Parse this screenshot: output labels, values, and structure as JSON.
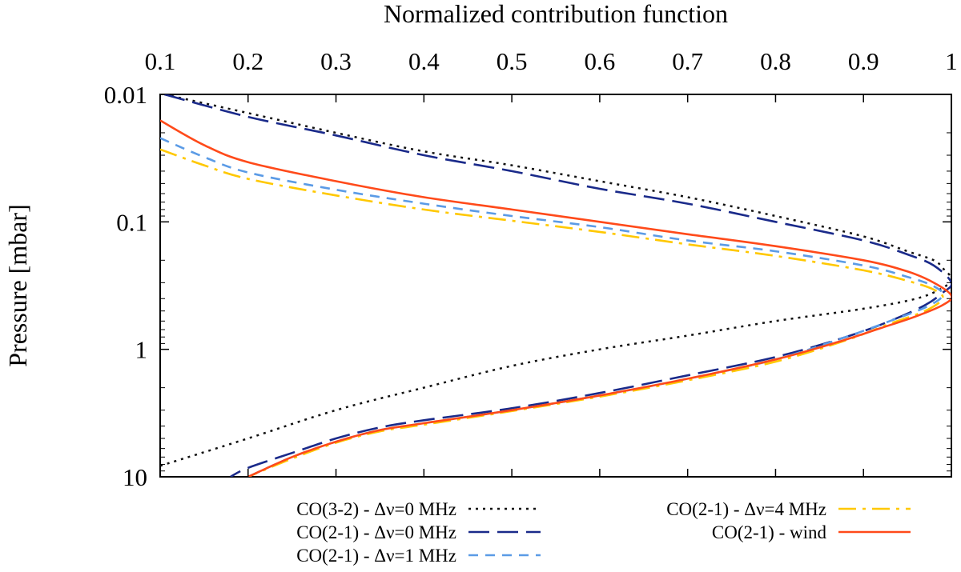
{
  "chart_data": {
    "type": "line",
    "title": "",
    "xlabel": "Normalized contribution function",
    "ylabel": "Pressure [mbar]",
    "xaxis_position": "top",
    "xlim": [
      0.1,
      1.0
    ],
    "ylim": [
      0.01,
      10
    ],
    "yscale": "log",
    "yinverted": true,
    "grid": false,
    "legend_position": "bottom-outside",
    "x_ticks": [
      {
        "value": 0.1,
        "label": "0.1"
      },
      {
        "value": 0.2,
        "label": "0.2"
      },
      {
        "value": 0.3,
        "label": "0.3"
      },
      {
        "value": 0.4,
        "label": "0.4"
      },
      {
        "value": 0.5,
        "label": "0.5"
      },
      {
        "value": 0.6,
        "label": "0.6"
      },
      {
        "value": 0.7,
        "label": "0.7"
      },
      {
        "value": 0.8,
        "label": "0.8"
      },
      {
        "value": 0.9,
        "label": "0.9"
      },
      {
        "value": 1.0,
        "label": "1"
      }
    ],
    "y_ticks": [
      {
        "value": 0.01,
        "label": "0.01"
      },
      {
        "value": 0.1,
        "label": "0.1"
      },
      {
        "value": 1,
        "label": "1"
      },
      {
        "value": 10,
        "label": "10"
      }
    ],
    "series": [
      {
        "name": "CO(3-2) - Δν=0 MHz",
        "color": "#111111",
        "dash": "dotted",
        "points": [
          [
            0.105,
            0.01
          ],
          [
            0.2,
            0.014
          ],
          [
            0.3,
            0.02
          ],
          [
            0.4,
            0.028
          ],
          [
            0.5,
            0.036
          ],
          [
            0.6,
            0.048
          ],
          [
            0.7,
            0.064
          ],
          [
            0.8,
            0.09
          ],
          [
            0.9,
            0.13
          ],
          [
            0.95,
            0.17
          ],
          [
            0.98,
            0.2
          ],
          [
            0.99,
            0.23
          ],
          [
            1.0,
            0.28
          ],
          [
            0.99,
            0.33
          ],
          [
            0.96,
            0.4
          ],
          [
            0.9,
            0.48
          ],
          [
            0.8,
            0.6
          ],
          [
            0.7,
            0.78
          ],
          [
            0.6,
            1.0
          ],
          [
            0.5,
            1.35
          ],
          [
            0.4,
            2.0
          ],
          [
            0.3,
            3.0
          ],
          [
            0.2,
            5.0
          ],
          [
            0.1,
            8.2
          ]
        ]
      },
      {
        "name": "CO(2-1) - Δν=0 MHz",
        "color": "#1a2a8a",
        "dash": "long-dash",
        "points": [
          [
            0.105,
            0.01
          ],
          [
            0.2,
            0.015
          ],
          [
            0.3,
            0.021
          ],
          [
            0.4,
            0.03
          ],
          [
            0.5,
            0.04
          ],
          [
            0.6,
            0.055
          ],
          [
            0.7,
            0.072
          ],
          [
            0.8,
            0.1
          ],
          [
            0.9,
            0.14
          ],
          [
            0.95,
            0.18
          ],
          [
            0.98,
            0.22
          ],
          [
            1.0,
            0.3
          ],
          [
            0.99,
            0.36
          ],
          [
            0.97,
            0.45
          ],
          [
            0.93,
            0.6
          ],
          [
            0.88,
            0.8
          ],
          [
            0.8,
            1.15
          ],
          [
            0.7,
            1.6
          ],
          [
            0.6,
            2.2
          ],
          [
            0.5,
            2.9
          ],
          [
            0.4,
            3.6
          ],
          [
            0.35,
            4.1
          ],
          [
            0.3,
            5.0
          ],
          [
            0.25,
            6.5
          ],
          [
            0.2,
            8.5
          ],
          [
            0.18,
            10
          ]
        ]
      },
      {
        "name": "CO(2-1) - Δν=1 MHz",
        "color": "#5b9be6",
        "dash": "dash",
        "points": [
          [
            0.1,
            0.022
          ],
          [
            0.15,
            0.031
          ],
          [
            0.2,
            0.041
          ],
          [
            0.3,
            0.056
          ],
          [
            0.4,
            0.072
          ],
          [
            0.5,
            0.09
          ],
          [
            0.6,
            0.11
          ],
          [
            0.7,
            0.14
          ],
          [
            0.8,
            0.17
          ],
          [
            0.9,
            0.22
          ],
          [
            0.95,
            0.27
          ],
          [
            0.98,
            0.32
          ],
          [
            0.99,
            0.38
          ],
          [
            0.97,
            0.47
          ],
          [
            0.93,
            0.6
          ],
          [
            0.88,
            0.8
          ],
          [
            0.8,
            1.2
          ],
          [
            0.7,
            1.7
          ],
          [
            0.6,
            2.3
          ],
          [
            0.5,
            3.0
          ],
          [
            0.4,
            3.8
          ],
          [
            0.35,
            4.3
          ],
          [
            0.3,
            5.3
          ],
          [
            0.25,
            7.0
          ],
          [
            0.2,
            10
          ]
        ]
      },
      {
        "name": "CO(2-1) - Δν=4 MHz",
        "color": "#ffc800",
        "dash": "dash-dot",
        "points": [
          [
            0.1,
            0.027
          ],
          [
            0.15,
            0.036
          ],
          [
            0.2,
            0.046
          ],
          [
            0.3,
            0.062
          ],
          [
            0.4,
            0.08
          ],
          [
            0.5,
            0.098
          ],
          [
            0.6,
            0.12
          ],
          [
            0.7,
            0.15
          ],
          [
            0.8,
            0.185
          ],
          [
            0.9,
            0.24
          ],
          [
            0.95,
            0.29
          ],
          [
            0.98,
            0.34
          ],
          [
            0.99,
            0.4
          ],
          [
            0.97,
            0.5
          ],
          [
            0.93,
            0.63
          ],
          [
            0.88,
            0.85
          ],
          [
            0.8,
            1.25
          ],
          [
            0.7,
            1.75
          ],
          [
            0.6,
            2.35
          ],
          [
            0.5,
            3.05
          ],
          [
            0.4,
            3.9
          ],
          [
            0.35,
            4.4
          ],
          [
            0.3,
            5.4
          ],
          [
            0.25,
            7.2
          ],
          [
            0.2,
            10
          ]
        ]
      },
      {
        "name": "CO(2-1) - wind",
        "color": "#ff4a1a",
        "dash": "solid",
        "points": [
          [
            0.1,
            0.016
          ],
          [
            0.15,
            0.025
          ],
          [
            0.2,
            0.034
          ],
          [
            0.3,
            0.048
          ],
          [
            0.4,
            0.064
          ],
          [
            0.5,
            0.08
          ],
          [
            0.6,
            0.1
          ],
          [
            0.7,
            0.125
          ],
          [
            0.8,
            0.155
          ],
          [
            0.9,
            0.2
          ],
          [
            0.95,
            0.245
          ],
          [
            0.98,
            0.3
          ],
          [
            1.0,
            0.38
          ],
          [
            0.99,
            0.45
          ],
          [
            0.96,
            0.55
          ],
          [
            0.92,
            0.68
          ],
          [
            0.87,
            0.88
          ],
          [
            0.8,
            1.2
          ],
          [
            0.7,
            1.7
          ],
          [
            0.6,
            2.3
          ],
          [
            0.5,
            3.0
          ],
          [
            0.4,
            3.8
          ],
          [
            0.35,
            4.3
          ],
          [
            0.3,
            5.3
          ],
          [
            0.25,
            7.0
          ],
          [
            0.2,
            10
          ]
        ]
      }
    ]
  }
}
